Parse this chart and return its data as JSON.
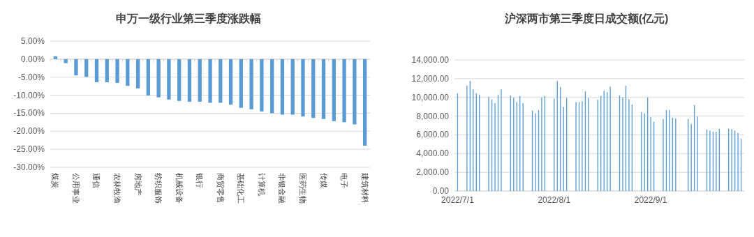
{
  "chart_data": [
    {
      "type": "bar",
      "title": "申万一级行业第三季度涨跌幅",
      "categories": [
        "煤炭",
        null,
        "公用事业",
        null,
        "通信",
        null,
        "农林牧渔",
        null,
        "房地产",
        null,
        "纺织服饰",
        null,
        "机械设备",
        null,
        "银行",
        null,
        "商贸零售",
        null,
        "基础化工",
        null,
        "计算机",
        null,
        "非银金融",
        null,
        "医药生物",
        null,
        "传媒",
        null,
        "电子",
        null,
        "建筑材料"
      ],
      "values": [
        0.8,
        -1.1,
        -4.5,
        -4.9,
        -6.4,
        -6.4,
        -6.6,
        -7.4,
        -8.1,
        -10.1,
        -10.6,
        -11.2,
        -11.6,
        -11.8,
        -11.8,
        -12.1,
        -12.1,
        -12.6,
        -13.5,
        -13.9,
        -14.5,
        -15.0,
        -15.4,
        -15.4,
        -15.9,
        -16.3,
        -16.6,
        -17.2,
        -17.5,
        -18.1,
        -24.0
      ],
      "color": "#5b9bd5",
      "ylim": [
        -30,
        5
      ],
      "yticks": [
        {
          "value": 5,
          "label": "5.00%"
        },
        {
          "value": 0,
          "label": "0.00%"
        },
        {
          "value": -5,
          "label": "-5.00%"
        },
        {
          "value": -10,
          "label": "-10.00%"
        },
        {
          "value": -15,
          "label": "-15.00%"
        },
        {
          "value": -20,
          "label": "-20.00%"
        },
        {
          "value": -25,
          "label": "-25.00%"
        },
        {
          "value": -30,
          "label": "-30.00%"
        }
      ],
      "grid": "y"
    },
    {
      "type": "bar",
      "title": "沪深两市第三季度日成交额(亿元)",
      "x": [
        "2022-07-01",
        "2022-07-04",
        "2022-07-05",
        "2022-07-06",
        "2022-07-07",
        "2022-07-08",
        "2022-07-11",
        "2022-07-12",
        "2022-07-13",
        "2022-07-14",
        "2022-07-15",
        "2022-07-18",
        "2022-07-19",
        "2022-07-20",
        "2022-07-21",
        "2022-07-22",
        "2022-07-25",
        "2022-07-26",
        "2022-07-27",
        "2022-07-28",
        "2022-07-29",
        "2022-08-01",
        "2022-08-02",
        "2022-08-03",
        "2022-08-04",
        "2022-08-05",
        "2022-08-08",
        "2022-08-09",
        "2022-08-10",
        "2022-08-11",
        "2022-08-12",
        "2022-08-15",
        "2022-08-16",
        "2022-08-17",
        "2022-08-18",
        "2022-08-19",
        "2022-08-22",
        "2022-08-23",
        "2022-08-24",
        "2022-08-25",
        "2022-08-26",
        "2022-08-29",
        "2022-08-30",
        "2022-08-31",
        "2022-09-01",
        "2022-09-02",
        "2022-09-05",
        "2022-09-06",
        "2022-09-07",
        "2022-09-08",
        "2022-09-09",
        "2022-09-13",
        "2022-09-14",
        "2022-09-15",
        "2022-09-16",
        "2022-09-19",
        "2022-09-20",
        "2022-09-21",
        "2022-09-22",
        "2022-09-23",
        "2022-09-26",
        "2022-09-27",
        "2022-09-28",
        "2022-09-29",
        "2022-09-30"
      ],
      "values": [
        10450,
        11250,
        11750,
        10850,
        10450,
        10280,
        10080,
        9780,
        9380,
        10280,
        10850,
        10200,
        9950,
        9500,
        10150,
        9380,
        8600,
        8300,
        8650,
        10000,
        10150,
        9880,
        11750,
        11100,
        8980,
        9950,
        9500,
        9500,
        9600,
        10650,
        9950,
        9750,
        10150,
        10700,
        10550,
        11150,
        10200,
        10000,
        11250,
        9800,
        9250,
        8400,
        8300,
        10000,
        7900,
        7400,
        7700,
        8650,
        8650,
        7820,
        7750,
        7700,
        7180,
        9180,
        7950,
        6580,
        6450,
        6330,
        6330,
        6650,
        6650,
        6600,
        6450,
        6200,
        5580
      ],
      "color": "#5b9bd5",
      "xlim": [
        "2022-06-30",
        "2022-10-01"
      ],
      "xticks": [
        {
          "value": "2022-07-01",
          "label": "2022/7/1"
        },
        {
          "value": "2022-08-01",
          "label": "2022/8/1"
        },
        {
          "value": "2022-09-01",
          "label": "2022/9/1"
        }
      ],
      "ylim": [
        0,
        14000
      ],
      "yticks": [
        {
          "value": 0,
          "label": "0.00"
        },
        {
          "value": 2000,
          "label": "2,000.00"
        },
        {
          "value": 4000,
          "label": "4,000.00"
        },
        {
          "value": 6000,
          "label": "6,000.00"
        },
        {
          "value": 8000,
          "label": "8,000.00"
        },
        {
          "value": 10000,
          "label": "10,000.00"
        },
        {
          "value": 12000,
          "label": "12,000.00"
        },
        {
          "value": 14000,
          "label": "14,000.00"
        }
      ],
      "grid": "y"
    }
  ]
}
